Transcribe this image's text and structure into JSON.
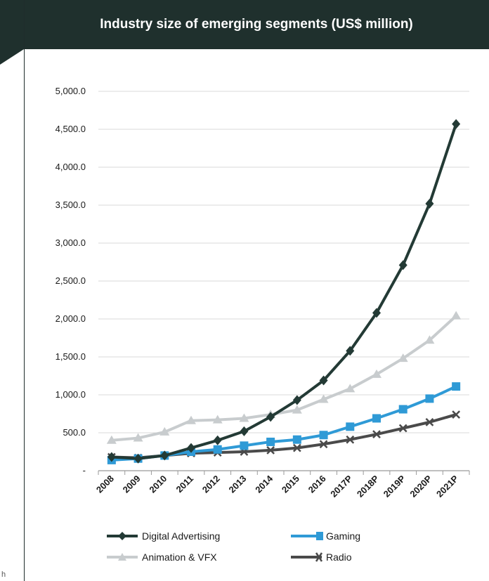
{
  "title": "Industry size of emerging segments (US$ million)",
  "footnote_mark": "h",
  "colors": {
    "header_bg": "#1f302d",
    "digital": "#233a35",
    "gaming": "#2f9ad6",
    "animation": "#c8ccce",
    "radio": "#4a4a4a"
  },
  "chart_data": {
    "type": "line",
    "title": "Industry size of emerging segments (US$ million)",
    "categories": [
      "2008",
      "2009",
      "2010",
      "2011",
      "2012",
      "2013",
      "2014",
      "2015",
      "2016",
      "2017P",
      "2018P",
      "2019P",
      "2020P",
      "2021P"
    ],
    "ylim": [
      0,
      5000
    ],
    "y_ticks": [
      "-",
      "500.0",
      "1,000.0",
      "1,500.0",
      "2,000.0",
      "2,500.0",
      "3,000.0",
      "3,500.0",
      "4,000.0",
      "4,500.0",
      "5,000.0"
    ],
    "grid": true,
    "legend_position": "bottom",
    "series": [
      {
        "name": "Digital Advertising",
        "color": "#233a35",
        "marker": "diamond",
        "values": [
          180,
          160,
          200,
          300,
          400,
          520,
          710,
          930,
          1190,
          1580,
          2080,
          2710,
          3520,
          4570
        ]
      },
      {
        "name": "Gaming",
        "color": "#2f9ad6",
        "marker": "square",
        "values": [
          140,
          160,
          200,
          250,
          280,
          330,
          380,
          410,
          470,
          580,
          690,
          810,
          950,
          1110
        ]
      },
      {
        "name": "Animation & VFX",
        "color": "#c8ccce",
        "marker": "triangle",
        "values": [
          400,
          430,
          510,
          660,
          670,
          690,
          740,
          800,
          940,
          1080,
          1270,
          1480,
          1720,
          2040
        ]
      },
      {
        "name": "Radio",
        "color": "#4a4a4a",
        "marker": "x",
        "values": [
          180,
          170,
          200,
          230,
          240,
          250,
          270,
          300,
          350,
          410,
          480,
          560,
          640,
          740
        ]
      }
    ]
  }
}
